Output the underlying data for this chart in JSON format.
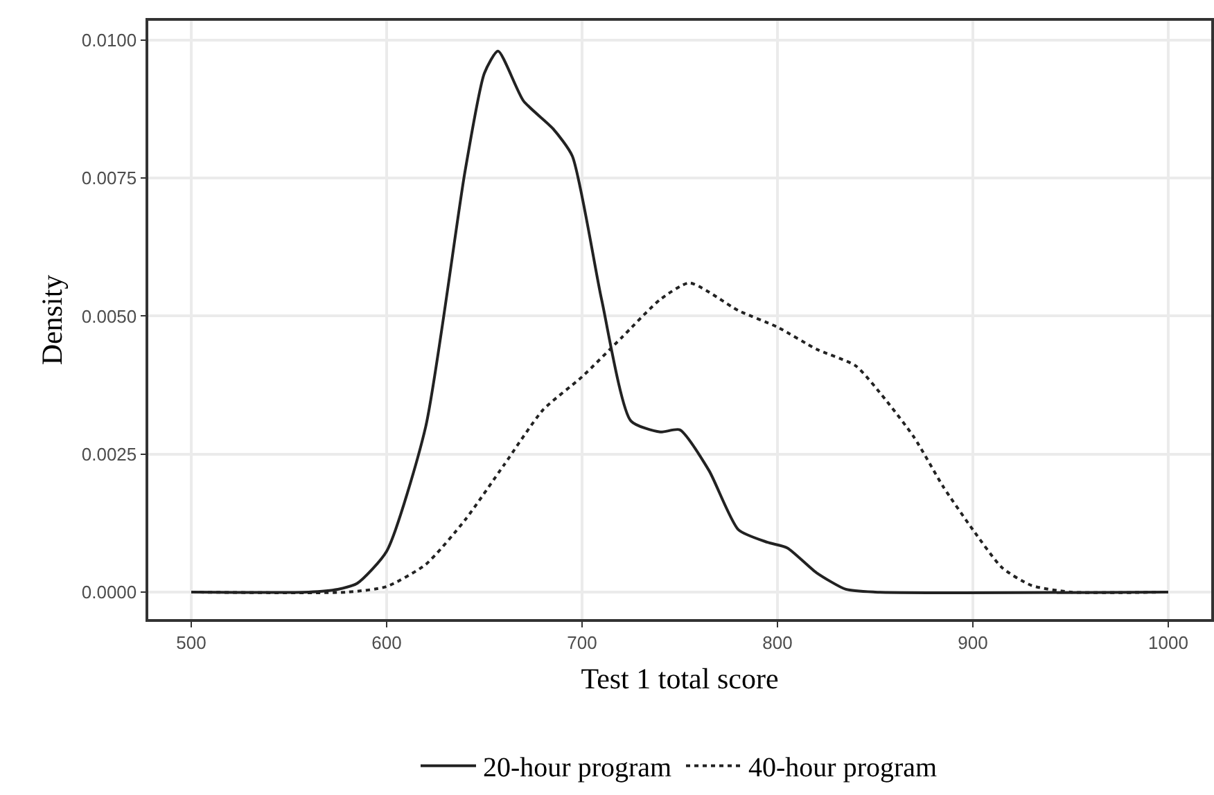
{
  "chart_data": {
    "type": "line",
    "xlabel": "Test 1 total score",
    "ylabel": "Density",
    "series": [
      {
        "name": "20-hour program",
        "color": "#222222",
        "line_style": "solid",
        "x": [
          500,
          560,
          575,
          585,
          600,
          620,
          640,
          650,
          657,
          670,
          685,
          695,
          710,
          725,
          740,
          750,
          765,
          780,
          795,
          805,
          820,
          835,
          850,
          1000
        ],
        "values": [
          0,
          0,
          5e-05,
          0.00016,
          0.00074,
          0.003,
          0.0076,
          0.0094,
          0.0098,
          0.0089,
          0.0084,
          0.0079,
          0.0053,
          0.0031,
          0.0029,
          0.00294,
          0.0022,
          0.00113,
          0.0009,
          0.0008,
          0.00035,
          5e-05,
          0,
          0
        ]
      },
      {
        "name": "40-hour program",
        "color": "#222222",
        "line_style": "dotted",
        "x": [
          500,
          580,
          600,
          620,
          640,
          660,
          680,
          700,
          720,
          740,
          755,
          780,
          800,
          820,
          840,
          855,
          870,
          885,
          900,
          915,
          930,
          950,
          1000
        ],
        "values": [
          0,
          0,
          0.0001,
          0.0005,
          0.0013,
          0.0023,
          0.0033,
          0.0039,
          0.0046,
          0.0053,
          0.0056,
          0.0051,
          0.0048,
          0.0044,
          0.0041,
          0.0035,
          0.0028,
          0.0019,
          0.00113,
          0.00044,
          0.00012,
          0,
          0
        ]
      }
    ],
    "xlim": [
      478,
      1022
    ],
    "xticks": [
      500,
      600,
      700,
      800,
      900,
      1000
    ],
    "ylim": [
      -0.00049,
      0.01035
    ],
    "yticks": [
      {
        "value": 0,
        "label": "0.0000"
      },
      {
        "value": 0.0025,
        "label": "0.0025"
      },
      {
        "value": 0.005,
        "label": "0.0050"
      },
      {
        "value": 0.0075,
        "label": "0.0075"
      },
      {
        "value": 0.01,
        "label": "0.0100"
      }
    ],
    "grid": true,
    "legend": "bottom"
  }
}
